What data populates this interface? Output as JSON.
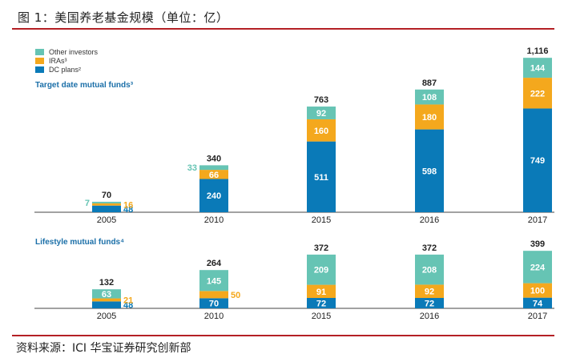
{
  "figure": {
    "title": "图 1：美国养老基金规模（单位：亿）",
    "source": "资料来源：ICI 华宝证券研究创新部"
  },
  "legend": [
    {
      "key": "other",
      "label": "Other investors",
      "color": "#66c4b4"
    },
    {
      "key": "iras",
      "label": "IRAs³",
      "color": "#f4a81d"
    },
    {
      "key": "dc",
      "label": "DC plans²",
      "color": "#0a7ab8"
    }
  ],
  "chart_data": [
    {
      "type": "bar",
      "stacked": true,
      "title": "Target date mutual funds³",
      "categories": [
        "2005",
        "2010",
        "2015",
        "2016",
        "2017"
      ],
      "totals": [
        "70",
        "340",
        "763",
        "887",
        "1,116"
      ],
      "total_values": [
        70,
        340,
        763,
        887,
        1116
      ],
      "series": [
        {
          "name": "DC plans²",
          "key": "dc",
          "values": [
            48,
            240,
            511,
            598,
            749
          ]
        },
        {
          "name": "IRAs³",
          "key": "iras",
          "values": [
            16,
            66,
            160,
            180,
            222
          ]
        },
        {
          "name": "Other investors",
          "key": "other",
          "values": [
            7,
            33,
            92,
            108,
            144
          ]
        }
      ],
      "ylim": [
        0,
        1116
      ],
      "grid": false,
      "legend_position": "top-left"
    },
    {
      "type": "bar",
      "stacked": true,
      "title": "Lifestyle mutual funds⁴",
      "categories": [
        "2005",
        "2010",
        "2015",
        "2016",
        "2017"
      ],
      "totals": [
        "132",
        "264",
        "372",
        "372",
        "399"
      ],
      "total_values": [
        132,
        264,
        372,
        372,
        399
      ],
      "series": [
        {
          "name": "DC plans²",
          "key": "dc",
          "values": [
            48,
            70,
            72,
            72,
            74
          ]
        },
        {
          "name": "IRAs³",
          "key": "iras",
          "values": [
            21,
            50,
            91,
            92,
            100
          ]
        },
        {
          "name": "Other investors",
          "key": "other",
          "values": [
            63,
            145,
            209,
            208,
            224
          ]
        }
      ],
      "ylim": [
        0,
        399
      ],
      "grid": false
    }
  ]
}
